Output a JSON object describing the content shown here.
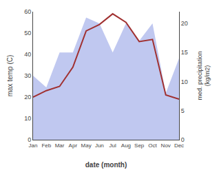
{
  "chart_data": {
    "type": "line",
    "categories": [
      "Jan",
      "Feb",
      "Mar",
      "Apr",
      "May",
      "Jun",
      "Jul",
      "Aug",
      "Sep",
      "Oct",
      "Nov",
      "Dec"
    ],
    "series": [
      {
        "type": "area",
        "color": "#c0c8f0",
        "axis": "y2",
        "values": [
          11,
          9,
          15,
          15,
          21,
          20,
          15,
          20,
          17,
          20,
          8,
          14
        ]
      },
      {
        "type": "line",
        "color": "#a03030",
        "values": [
          20,
          23,
          25,
          34,
          51,
          54,
          59,
          55,
          46,
          47,
          21,
          19
        ]
      }
    ],
    "xlabel": "date (month)",
    "ylabel": "max temp (C)",
    "y2label": "med. precipitation\n(kg/m2)",
    "ylim": [
      0,
      60
    ],
    "yticks": [
      0,
      10,
      20,
      30,
      40,
      50,
      60
    ],
    "y2lim": [
      0,
      22
    ],
    "y2ticks": [
      0,
      5,
      10,
      15,
      20
    ],
    "grid": false
  }
}
